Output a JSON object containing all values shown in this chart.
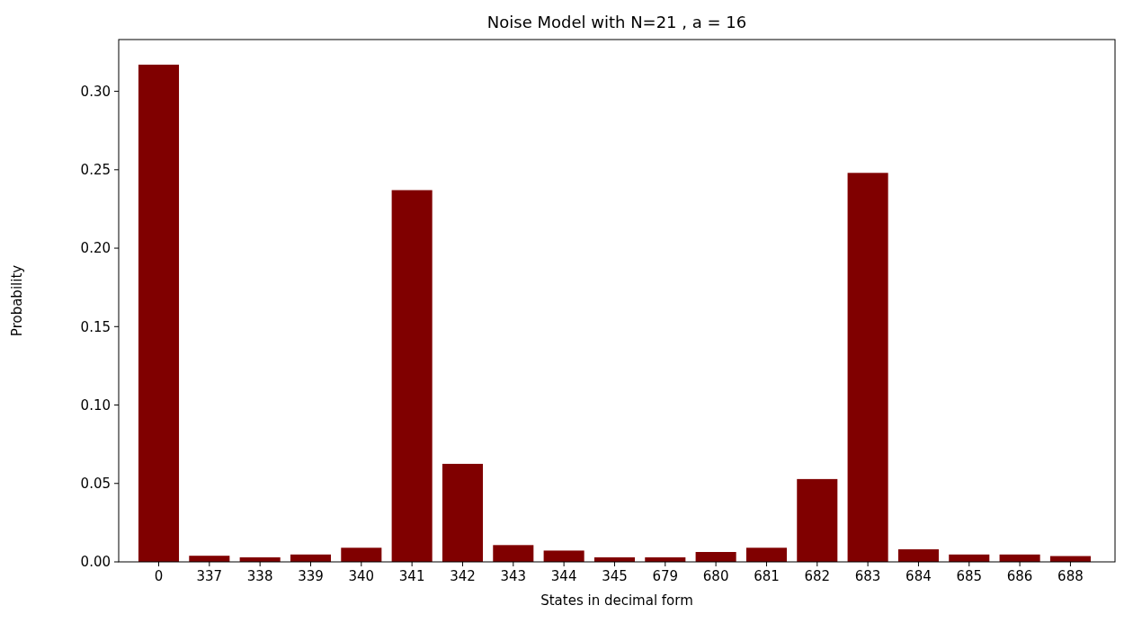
{
  "chart_data": {
    "type": "bar",
    "title": "Noise Model with N=21 , a = 16",
    "xlabel": "States in decimal form",
    "ylabel": "Probability",
    "categories": [
      "0",
      "337",
      "338",
      "339",
      "340",
      "341",
      "342",
      "343",
      "344",
      "345",
      "679",
      "680",
      "681",
      "682",
      "683",
      "684",
      "685",
      "686",
      "688"
    ],
    "values": [
      0.317,
      0.0039,
      0.0029,
      0.0047,
      0.009,
      0.237,
      0.0625,
      0.0107,
      0.0072,
      0.0029,
      0.0029,
      0.0063,
      0.009,
      0.0528,
      0.248,
      0.008,
      0.0047,
      0.0047,
      0.0037
    ],
    "color": "#800000",
    "ylim": [
      0,
      0.333
    ],
    "yticks": [
      {
        "value": 0,
        "label": "0.00"
      },
      {
        "value": 0.05,
        "label": "0.05"
      },
      {
        "value": 0.1,
        "label": "0.10"
      },
      {
        "value": 0.15,
        "label": "0.15"
      },
      {
        "value": 0.2,
        "label": "0.20"
      },
      {
        "value": 0.25,
        "label": "0.25"
      },
      {
        "value": 0.3,
        "label": "0.30"
      }
    ]
  }
}
